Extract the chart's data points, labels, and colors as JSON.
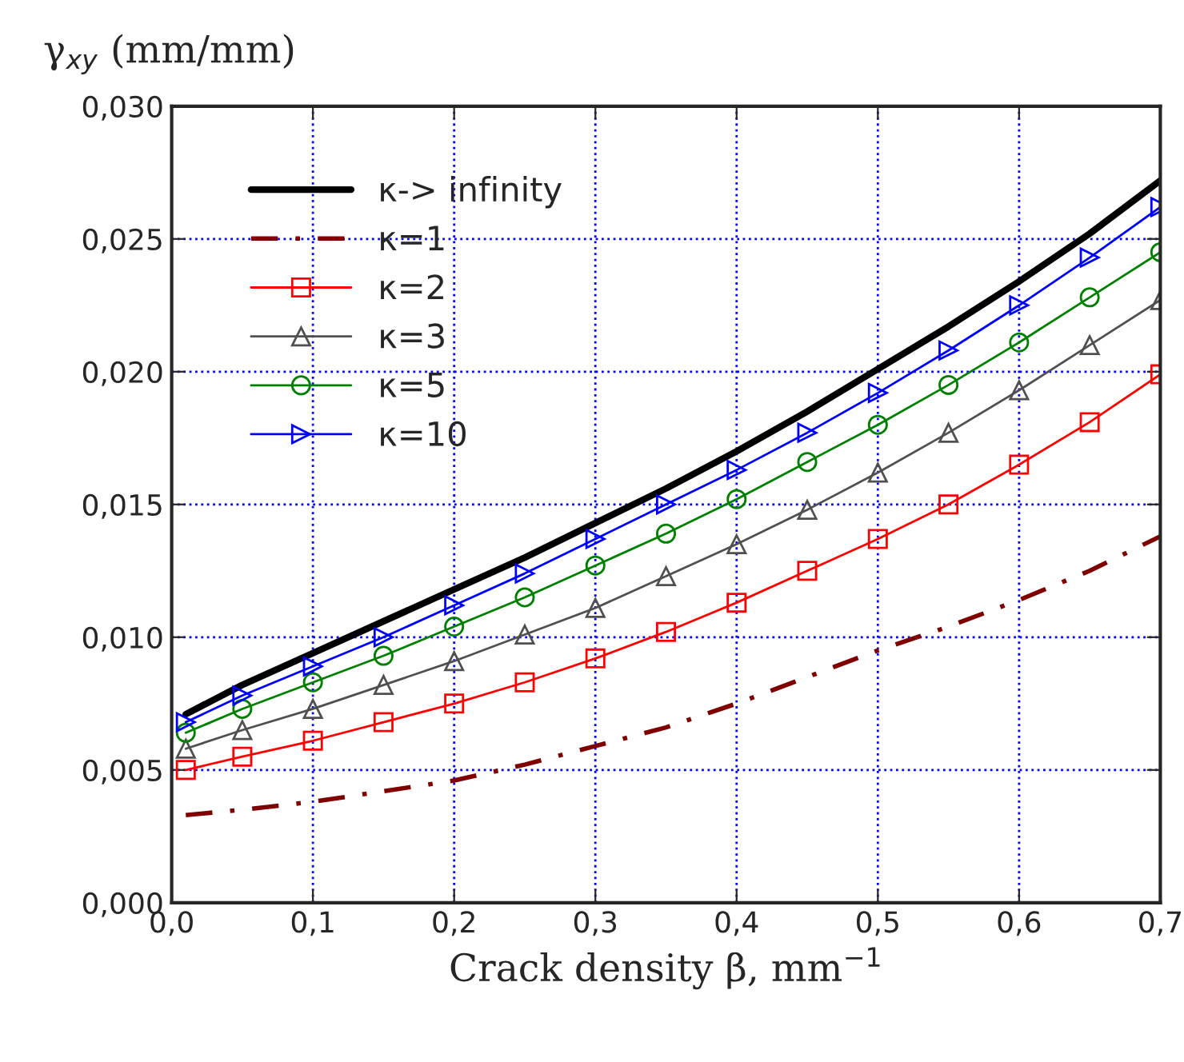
{
  "chart_data": {
    "type": "line",
    "xlabel": "Crack density β, mm$^{−1}$",
    "ylabel": "γ$_{xy}$ (mm/mm)",
    "x": [
      0.01,
      0.05,
      0.1,
      0.15,
      0.2,
      0.25,
      0.3,
      0.35,
      0.4,
      0.45,
      0.5,
      0.55,
      0.6,
      0.65,
      0.7
    ],
    "series": [
      {
        "name": "κ-> infinity",
        "color": "#000000",
        "marker": "none",
        "line_style": "solid",
        "values": [
          0.0071,
          0.0082,
          0.0094,
          0.0106,
          0.0118,
          0.013,
          0.0143,
          0.0156,
          0.017,
          0.0185,
          0.0201,
          0.0217,
          0.0234,
          0.0252,
          0.0272
        ]
      },
      {
        "name": "κ=1",
        "color": "#800000",
        "marker": "none",
        "line_style": "dashed",
        "values": [
          0.0033,
          0.0035,
          0.0038,
          0.0042,
          0.0046,
          0.0052,
          0.0059,
          0.0066,
          0.0075,
          0.0085,
          0.0095,
          0.0104,
          0.0114,
          0.0125,
          0.0138
        ]
      },
      {
        "name": "κ=2",
        "color": "#ff0000",
        "marker": "square",
        "line_style": "solid",
        "values": [
          0.005,
          0.0055,
          0.0061,
          0.0068,
          0.0075,
          0.0083,
          0.0092,
          0.0102,
          0.0113,
          0.0125,
          0.0137,
          0.015,
          0.0165,
          0.0181,
          0.0199
        ]
      },
      {
        "name": "κ=3",
        "color": "#505050",
        "marker": "triangle",
        "line_style": "solid",
        "values": [
          0.0058,
          0.0065,
          0.0073,
          0.0082,
          0.0091,
          0.0101,
          0.0111,
          0.0123,
          0.0135,
          0.0148,
          0.0162,
          0.0177,
          0.0193,
          0.021,
          0.0227
        ]
      },
      {
        "name": "κ=5",
        "color": "#008000",
        "marker": "circle",
        "line_style": "solid",
        "values": [
          0.0064,
          0.0073,
          0.0083,
          0.0093,
          0.0104,
          0.0115,
          0.0127,
          0.0139,
          0.0152,
          0.0166,
          0.018,
          0.0195,
          0.0211,
          0.0228,
          0.0245
        ]
      },
      {
        "name": "κ=10",
        "color": "#0000ff",
        "marker": "triangle_right",
        "line_style": "solid",
        "values": [
          0.0068,
          0.0078,
          0.0089,
          0.01,
          0.0112,
          0.0124,
          0.0137,
          0.015,
          0.0163,
          0.0177,
          0.0192,
          0.0208,
          0.0225,
          0.0243,
          0.0262
        ]
      }
    ],
    "xlim": [
      0,
      0.7
    ],
    "ylim": [
      0,
      0.03
    ],
    "xticks": [
      {
        "value": 0,
        "label": "0,0"
      },
      {
        "value": 0.1,
        "label": "0,1"
      },
      {
        "value": 0.2,
        "label": "0,2"
      },
      {
        "value": 0.3,
        "label": "0,3"
      },
      {
        "value": 0.4,
        "label": "0,4"
      },
      {
        "value": 0.5,
        "label": "0,5"
      },
      {
        "value": 0.6,
        "label": "0,6"
      },
      {
        "value": 0.7,
        "label": "0,7"
      }
    ],
    "yticks": [
      {
        "value": 0,
        "label": "0,000"
      },
      {
        "value": 0.005,
        "label": "0,005"
      },
      {
        "value": 0.01,
        "label": "0,010"
      },
      {
        "value": 0.015,
        "label": "0,015"
      },
      {
        "value": 0.02,
        "label": "0,020"
      },
      {
        "value": 0.025,
        "label": "0,025"
      },
      {
        "value": 0.03,
        "label": "0,030"
      }
    ],
    "grid": true,
    "legend": "top left"
  }
}
